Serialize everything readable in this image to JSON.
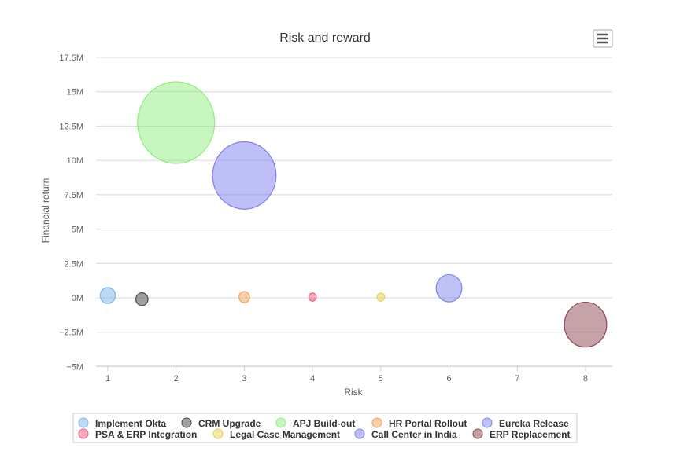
{
  "chart_data": {
    "type": "bubble",
    "title": "Risk and reward",
    "xlabel": "Risk",
    "ylabel": "Financial return",
    "xlim": [
      0.8,
      8.4
    ],
    "ylim": [
      -5000000,
      17500000
    ],
    "xticks": [
      1,
      2,
      3,
      4,
      5,
      6,
      7,
      8
    ],
    "yticks": [
      -5000000,
      -2500000,
      0,
      2500000,
      5000000,
      7500000,
      10000000,
      12500000,
      15000000,
      17500000
    ],
    "ytick_labels": [
      "−5M",
      "−2.5M",
      "0M",
      "2.5M",
      "5M",
      "7.5M",
      "10M",
      "12.5M",
      "15M",
      "17.5M"
    ],
    "grid": "horizontal",
    "legend_placement": "bottom",
    "series": [
      {
        "name": "Implement Okta",
        "x": 1,
        "y": 170000,
        "z": 10,
        "color": "#7cb5ec"
      },
      {
        "name": "CRM Upgrade",
        "x": 1.5,
        "y": -100000,
        "z": 8,
        "color": "#434348"
      },
      {
        "name": "APJ Build-out",
        "x": 2,
        "y": 12750000,
        "z": 51,
        "color": "#90ed7d"
      },
      {
        "name": "HR Portal Rollout",
        "x": 3,
        "y": 50000,
        "z": 7,
        "color": "#f7a35c"
      },
      {
        "name": "Eureka Release",
        "x": 6,
        "y": 700000,
        "z": 17,
        "color": "#8085e9"
      },
      {
        "name": "PSA & ERP Integration",
        "x": 4,
        "y": 50000,
        "z": 5,
        "color": "#f15c80"
      },
      {
        "name": "Legal Case Management",
        "x": 5,
        "y": 50000,
        "z": 5,
        "color": "#e4d354"
      },
      {
        "name": "Call Center in India",
        "x": 3,
        "y": 8900000,
        "z": 42,
        "color": "#7f7ff0"
      },
      {
        "name": "ERP Replacement",
        "x": 8,
        "y": -1950000,
        "z": 28,
        "color": "#8d4653"
      }
    ]
  }
}
